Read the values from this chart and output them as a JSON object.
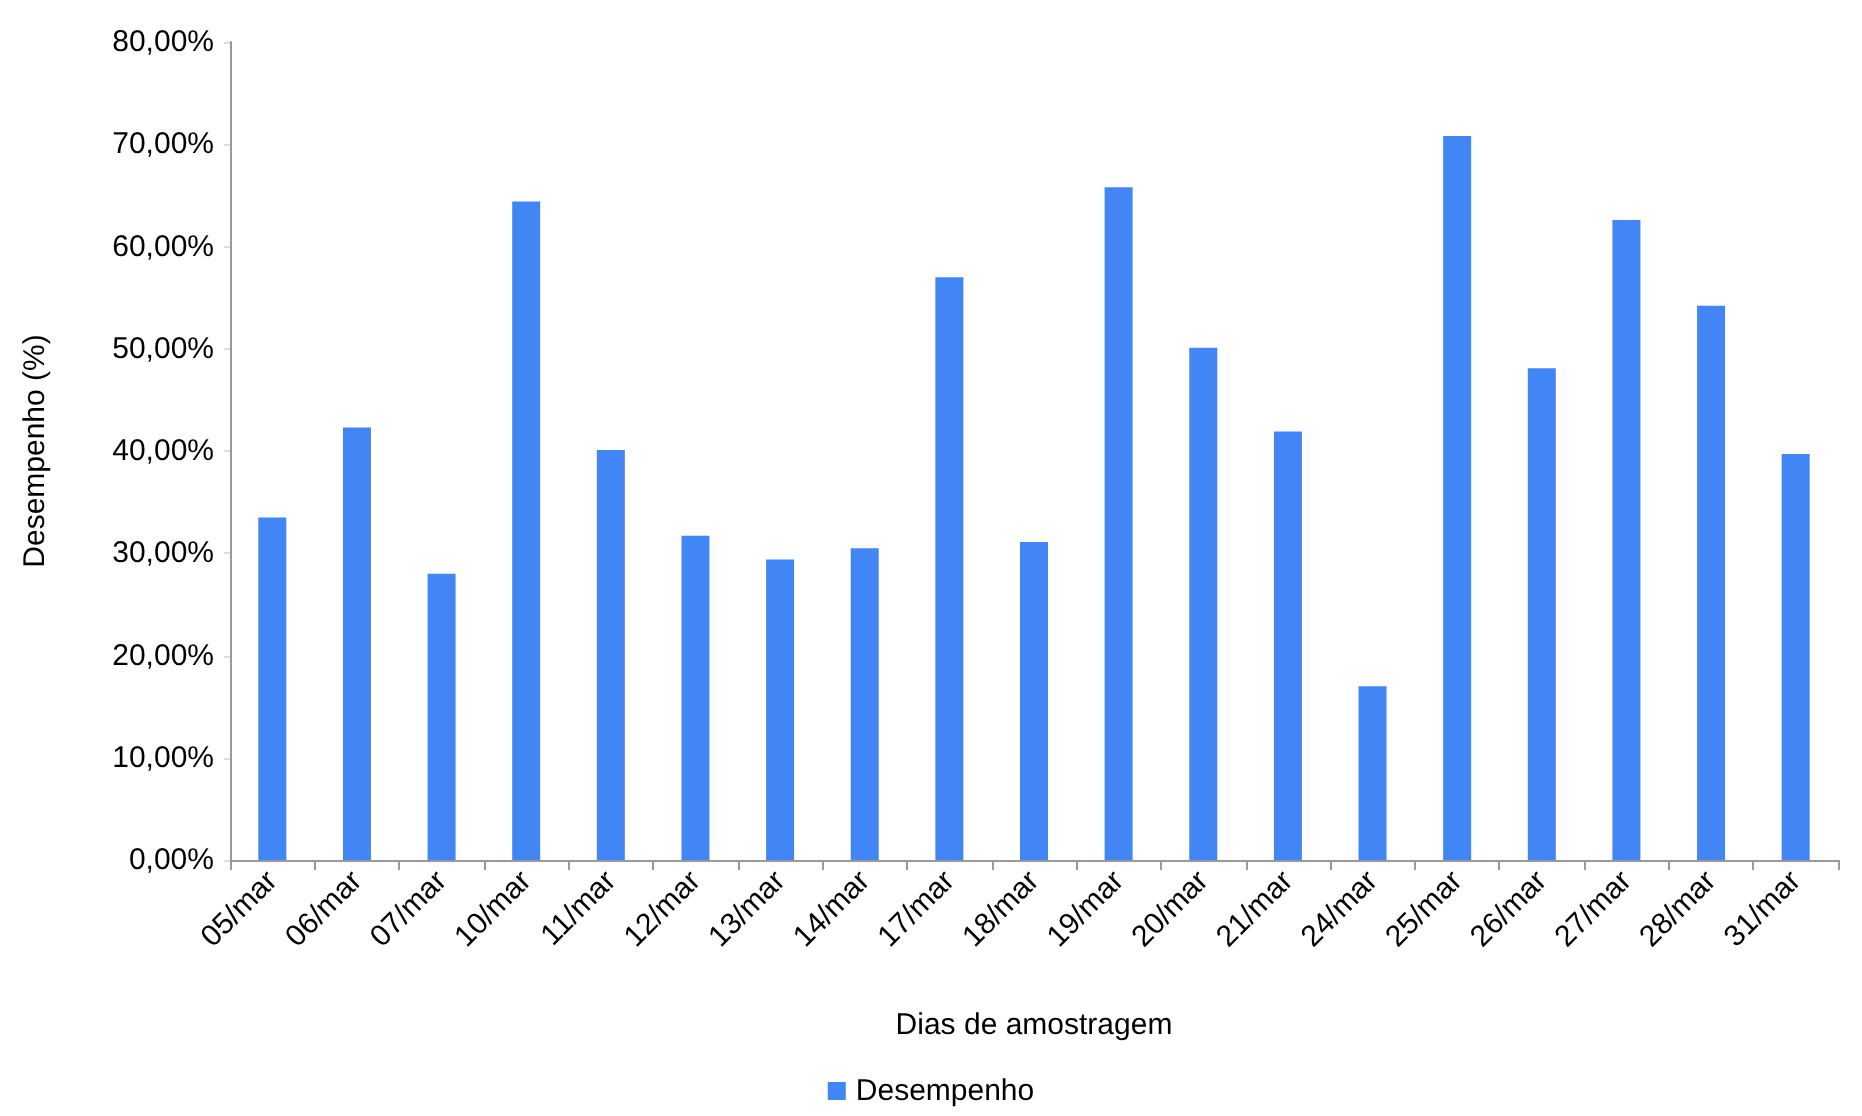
{
  "chart_data": {
    "type": "bar",
    "xlabel": "Dias de amostragem",
    "ylabel": "Desempenho (%)",
    "categories": [
      "05/mar",
      "06/mar",
      "07/mar",
      "10/mar",
      "11/mar",
      "12/mar",
      "13/mar",
      "14/mar",
      "17/mar",
      "18/mar",
      "19/mar",
      "20/mar",
      "21/mar",
      "24/mar",
      "25/mar",
      "26/mar",
      "27/mar",
      "28/mar",
      "31/mar"
    ],
    "series": [
      {
        "name": "Desempenho",
        "color": "#4285f4",
        "values": [
          33.5,
          42.3,
          28.0,
          64.4,
          40.1,
          31.7,
          29.4,
          30.5,
          57.0,
          31.1,
          65.8,
          50.1,
          41.9,
          17.0,
          70.8,
          48.1,
          62.6,
          54.2,
          39.7
        ]
      }
    ],
    "ylim": [
      0,
      80
    ],
    "yticks": [
      {
        "value": 0,
        "label": "0,00%"
      },
      {
        "value": 10,
        "label": "10,00%"
      },
      {
        "value": 20,
        "label": "20,00%"
      },
      {
        "value": 30,
        "label": "30,00%"
      },
      {
        "value": 40,
        "label": "40,00%"
      },
      {
        "value": 50,
        "label": "50,00%"
      },
      {
        "value": 60,
        "label": "60,00%"
      },
      {
        "value": 70,
        "label": "70,00%"
      },
      {
        "value": 80,
        "label": "80,00%"
      }
    ],
    "grid": false,
    "legend": "bottom"
  }
}
